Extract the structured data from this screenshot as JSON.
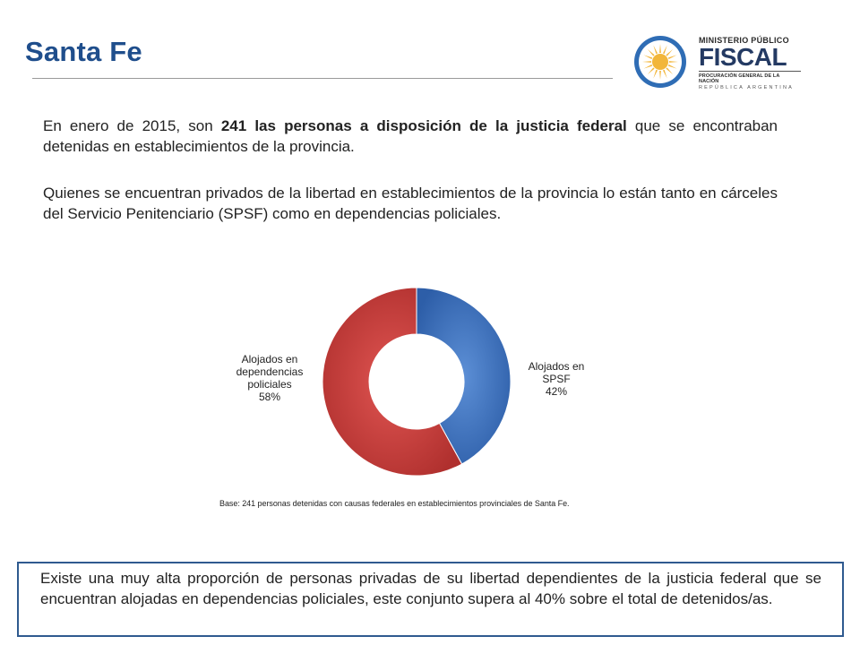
{
  "slide": {
    "title": "Santa Fe",
    "paragraph1": {
      "before": "En enero de 2015, son ",
      "bold": "241 las personas a disposición de la justicia federal",
      "after": " que se encontraban detenidas en establecimientos de la provincia."
    },
    "paragraph2": "Quienes se encuentran privados de la libertad en establecimientos de la provincia lo están tanto en cárceles del Servicio Penitenciario (SPSF) como en dependencias policiales.",
    "base_note": "Base: 241 personas detenidas con causas federales en establecimientos provinciales de Santa Fe.",
    "callout": "Existe una muy alta proporción de personas privadas de su libertad dependientes de la justicia federal que se encuentran alojadas en dependencias policiales, este conjunto supera al 40% sobre el total de detenidos/as."
  },
  "logo": {
    "line1": "MINISTERIO PÚBLICO",
    "line2": "FISCAL",
    "line3": "PROCURACIÓN GENERAL DE LA NACIÓN",
    "line4": "REPÚBLICA ARGENTINA",
    "emblem_icon": "sun-emblem-icon",
    "colors": {
      "ring": "#2f6db5",
      "sun": "#f2b63a",
      "text": "#243a63"
    }
  },
  "chart_data": {
    "type": "pie",
    "donut": true,
    "title": "",
    "slices": [
      {
        "label": "Alojados en SPSF",
        "value": 42,
        "display": "42%",
        "color": "#3a6fbd"
      },
      {
        "label": "Alojados en dependencias policiales",
        "value": 58,
        "display": "58%",
        "color": "#c03a38"
      }
    ],
    "label_lines": [
      [
        "Alojados en",
        "SPSF",
        "42%"
      ],
      [
        "Alojados en",
        "dependencias",
        "policiales",
        "58%"
      ]
    ],
    "legend": "none",
    "labels_placement": "outside"
  }
}
